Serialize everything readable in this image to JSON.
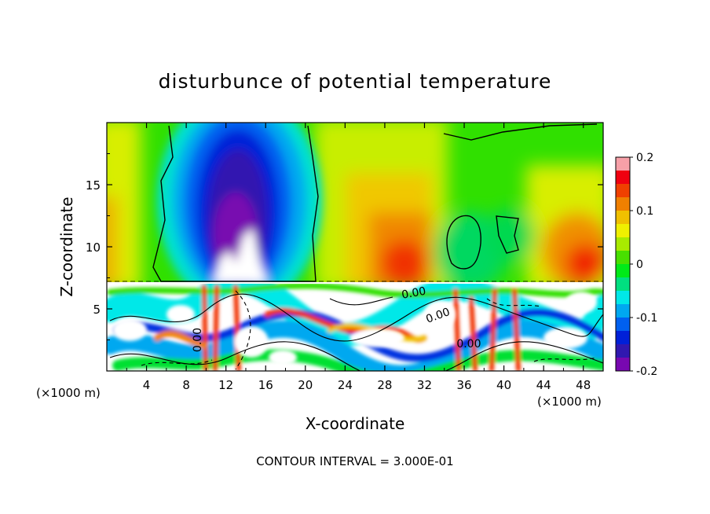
{
  "chart_data": {
    "type": "heatmap",
    "title": "disturbunce of potential temperature",
    "xlabel": "X-coordinate",
    "ylabel": "Z-coordinate",
    "x_unit_left": "(×1000 m)",
    "x_unit_right": "(×1000 m)",
    "xlim": [
      0,
      50
    ],
    "ylim": [
      0,
      20
    ],
    "x_ticks": [
      4,
      8,
      12,
      16,
      20,
      24,
      28,
      32,
      36,
      40,
      44,
      48
    ],
    "y_ticks": [
      5,
      10,
      15
    ],
    "colorbar": {
      "range": [
        -0.2,
        0.2
      ],
      "ticks": [
        "0.2",
        "0.1",
        "0",
        "-0.1",
        "-0.2"
      ],
      "colors": [
        "#f7a0a8",
        "#f00010",
        "#f04000",
        "#f08000",
        "#f0c000",
        "#f0f000",
        "#a8ea00",
        "#48e000",
        "#00ea18",
        "#00e080",
        "#00e8e8",
        "#00a8f0",
        "#0060f0",
        "#0020d8",
        "#3018b0",
        "#7808b0"
      ]
    },
    "contour_labels": [
      "0.00",
      "0.00",
      "0.00",
      "0.00"
    ],
    "footer": "CONTOUR INTERVAL = 3.000E-01"
  }
}
